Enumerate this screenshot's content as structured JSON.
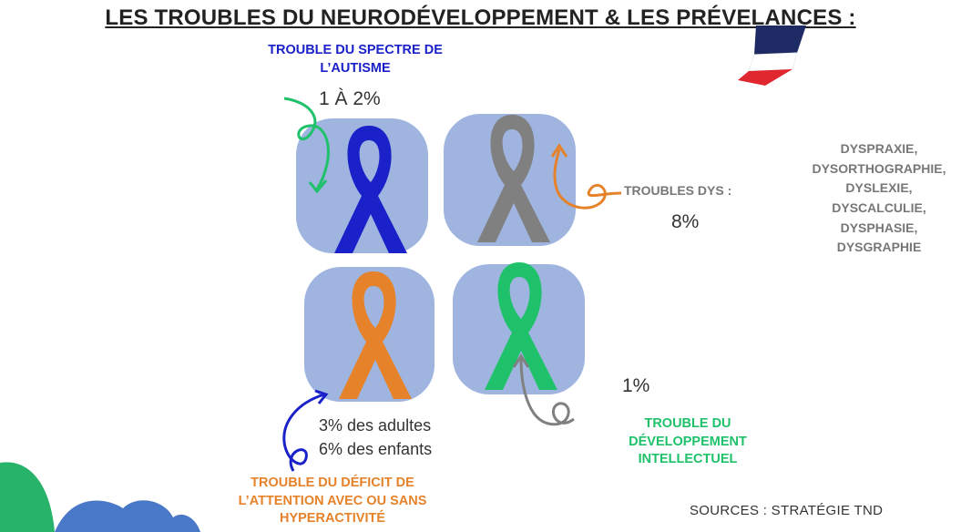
{
  "title": "LES TROUBLES DU NEURODÉVELOPPEMENT & LES PRÉVELANCES :",
  "tsa": {
    "label_line1": "TROUBLE DU SPECTRE DE",
    "label_line2": "L’AUTISME",
    "prevalence": "1 À 2%",
    "color": "#1a21c8"
  },
  "dys": {
    "label": "TROUBLES DYS :",
    "prevalence": "8%",
    "color": "#808080",
    "list": [
      "DYSPRAXIE,",
      "DYSORTHOGRAPHIE,",
      "DYSLEXIE,",
      "DYSCALCULIE,",
      "DYSPHASIE,",
      "DYSGRAPHIE"
    ]
  },
  "tdah": {
    "label_line1": "TROUBLE DU DÉFICIT DE",
    "label_line2": "L’ATTENTION AVEC OU SANS",
    "label_line3": "HYPERACTIVITÉ",
    "prevalence_adults": "3% des adultes",
    "prevalence_children": "6% des enfants",
    "color": "#e5822a"
  },
  "tdi": {
    "label_line1": "TROUBLE DU",
    "label_line2": "DÉVELOPPEMENT",
    "label_line3": "INTELLECTUEL",
    "prevalence": "1%",
    "color": "#1fc26a"
  },
  "sources": "SOURCES : STRATÉGIE TND",
  "colors": {
    "tile": "#9fb5e0",
    "blob_green": "#27b36a",
    "blob_blue": "#4a78c8",
    "flag_blue": "#1d2a63",
    "flag_red": "#e0262f"
  }
}
